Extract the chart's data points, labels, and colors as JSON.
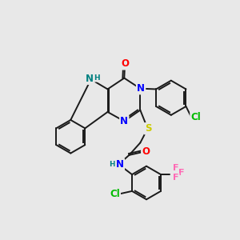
{
  "background_color": "#e8e8e8",
  "bond_color": "#1a1a1a",
  "atom_colors": {
    "N": "#0000ff",
    "O": "#ff0000",
    "S": "#cccc00",
    "Cl": "#00bb00",
    "F": "#ff69b4",
    "NH": "#008080"
  }
}
